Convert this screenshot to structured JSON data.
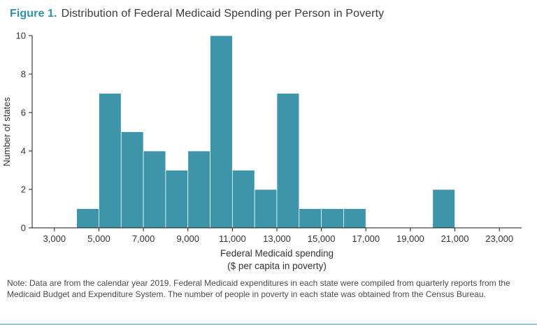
{
  "figure": {
    "label": "Figure 1.",
    "title": "Distribution of Federal Medicaid Spending per Person in Poverty"
  },
  "chart_data": {
    "type": "bar",
    "subtype": "histogram",
    "title": "Distribution of Federal Medicaid Spending per Person in Poverty",
    "xlabel_line1": "Federal Medicaid spending",
    "xlabel_line2": "($ per capita in poverty)",
    "ylabel": "Number of states",
    "xlim": [
      2000,
      24000
    ],
    "ylim": [
      0,
      10
    ],
    "grid": false,
    "legend": false,
    "yticks": [
      0,
      2,
      4,
      6,
      8,
      10
    ],
    "xticks": [
      {
        "value": 3000,
        "label": "3,000"
      },
      {
        "value": 5000,
        "label": "5,000"
      },
      {
        "value": 7000,
        "label": "7,000"
      },
      {
        "value": 9000,
        "label": "9,000"
      },
      {
        "value": 11000,
        "label": "11,000"
      },
      {
        "value": 13000,
        "label": "13,000"
      },
      {
        "value": 15000,
        "label": "15,000"
      },
      {
        "value": 17000,
        "label": "17,000"
      },
      {
        "value": 19000,
        "label": "19,000"
      },
      {
        "value": 21000,
        "label": "21,000"
      },
      {
        "value": 23000,
        "label": "23,000"
      }
    ],
    "bin_width": 1000,
    "bins": [
      {
        "start": 4000,
        "count": 1
      },
      {
        "start": 5000,
        "count": 7
      },
      {
        "start": 6000,
        "count": 5
      },
      {
        "start": 7000,
        "count": 4
      },
      {
        "start": 8000,
        "count": 3
      },
      {
        "start": 9000,
        "count": 4
      },
      {
        "start": 10000,
        "count": 10
      },
      {
        "start": 11000,
        "count": 3
      },
      {
        "start": 12000,
        "count": 2
      },
      {
        "start": 13000,
        "count": 7
      },
      {
        "start": 14000,
        "count": 1
      },
      {
        "start": 15000,
        "count": 1
      },
      {
        "start": 16000,
        "count": 1
      },
      {
        "start": 20000,
        "count": 2
      }
    ],
    "bar_color": "#3E95A9",
    "axis_color": "#1a1a1a",
    "tick_label_color": "#333333"
  },
  "note": "Note: Data are from the calendar year 2019. Federal Medicaid expenditures in each state were compiled from quarterly reports from the Medicaid Budget and Expenditure System. The number of people in poverty in each state was obtained from the Census Bureau.",
  "colors": {
    "accent": "#2E93A8",
    "title_text": "#3A3A3A",
    "note_text": "#4A4A4A"
  }
}
